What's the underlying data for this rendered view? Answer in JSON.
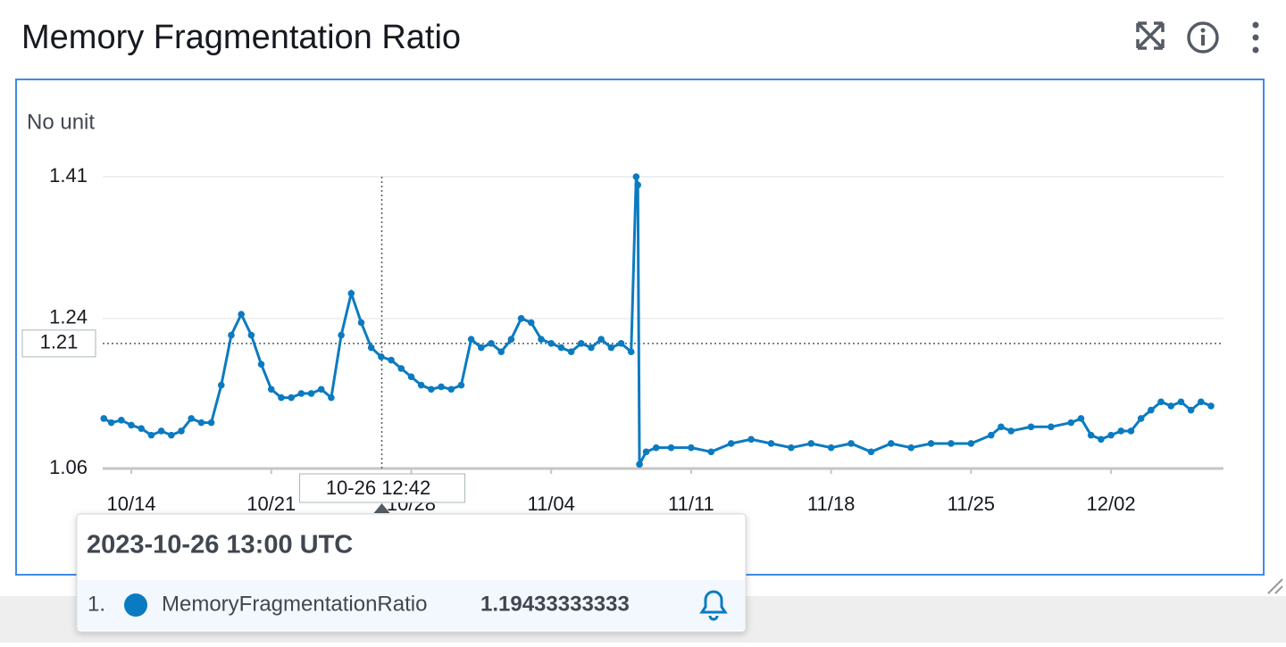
{
  "chart_data": {
    "type": "line",
    "title": "Memory Fragmentation Ratio",
    "y_label": "No unit",
    "x": [
      "10-12 15:00",
      "10-13 00:00",
      "10-13 12:00",
      "10-14 00:00",
      "10-14 12:00",
      "10-15 00:00",
      "10-15 12:00",
      "10-16 00:00",
      "10-16 12:00",
      "10-17 00:00",
      "10-17 12:00",
      "10-18 00:00",
      "10-18 12:00",
      "10-19 00:00",
      "10-19 12:00",
      "10-20 00:00",
      "10-20 12:00",
      "10-21 00:00",
      "10-21 12:00",
      "10-22 00:00",
      "10-22 12:00",
      "10-23 00:00",
      "10-23 12:00",
      "10-24 00:00",
      "10-24 12:00",
      "10-25 00:00",
      "10-25 12:00",
      "10-26 00:00",
      "10-26 12:00",
      "10-27 00:00",
      "10-27 12:00",
      "10-28 00:00",
      "10-28 12:00",
      "10-29 00:00",
      "10-29 12:00",
      "10-30 00:00",
      "10-30 12:00",
      "10-31 00:00",
      "10-31 12:00",
      "11-01 00:00",
      "11-01 12:00",
      "11-02 00:00",
      "11-02 12:00",
      "11-03 00:00",
      "11-03 12:00",
      "11-04 00:00",
      "11-04 12:00",
      "11-05 00:00",
      "11-05 12:00",
      "11-06 00:00",
      "11-06 12:00",
      "11-07 00:00",
      "11-07 12:00",
      "11-08 00:00",
      "11-08 06:00",
      "11-08 08:00",
      "11-08 10:00",
      "11-08 18:00",
      "11-09 06:00",
      "11-10 00:00",
      "11-11 00:00",
      "11-12 00:00",
      "11-13 00:00",
      "11-14 00:00",
      "11-15 00:00",
      "11-16 00:00",
      "11-17 00:00",
      "11-18 00:00",
      "11-19 00:00",
      "11-20 00:00",
      "11-21 00:00",
      "11-22 00:00",
      "11-23 00:00",
      "11-24 00:00",
      "11-25 00:00",
      "11-26 00:00",
      "11-26 12:00",
      "11-27 00:00",
      "11-28 00:00",
      "11-29 00:00",
      "11-30 00:00",
      "11-30 12:00",
      "12-01 00:00",
      "12-01 12:00",
      "12-02 00:00",
      "12-02 12:00",
      "12-03 00:00",
      "12-03 12:00",
      "12-04 00:00",
      "12-04 12:00",
      "12-05 00:00",
      "12-05 12:00",
      "12-06 00:00",
      "12-06 12:00",
      "12-07 00:00"
    ],
    "series": [
      {
        "name": "MemoryFragmentationRatio",
        "color": "#0b7bc1",
        "values": [
          1.12,
          1.115,
          1.118,
          1.112,
          1.108,
          1.1,
          1.105,
          1.1,
          1.105,
          1.12,
          1.115,
          1.115,
          1.16,
          1.22,
          1.245,
          1.22,
          1.185,
          1.155,
          1.145,
          1.145,
          1.15,
          1.15,
          1.155,
          1.145,
          1.22,
          1.27,
          1.235,
          1.205,
          1.194,
          1.19,
          1.18,
          1.17,
          1.16,
          1.155,
          1.158,
          1.155,
          1.16,
          1.215,
          1.205,
          1.21,
          1.2,
          1.215,
          1.24,
          1.235,
          1.215,
          1.21,
          1.205,
          1.2,
          1.21,
          1.205,
          1.215,
          1.205,
          1.21,
          1.2,
          1.41,
          1.4,
          1.065,
          1.08,
          1.085,
          1.085,
          1.085,
          1.08,
          1.09,
          1.095,
          1.09,
          1.085,
          1.09,
          1.085,
          1.09,
          1.08,
          1.09,
          1.085,
          1.09,
          1.09,
          1.09,
          1.1,
          1.11,
          1.105,
          1.11,
          1.11,
          1.115,
          1.12,
          1.1,
          1.095,
          1.1,
          1.105,
          1.105,
          1.12,
          1.13,
          1.14,
          1.135,
          1.14,
          1.13,
          1.14,
          1.135
        ]
      }
    ],
    "xlim": [
      "10-12 13:40",
      "12-07 15:00"
    ],
    "xticks": [
      {
        "value": "10-14 00:00",
        "label": "10/14"
      },
      {
        "value": "10-21 00:00",
        "label": "10/21"
      },
      {
        "value": "10-28 00:00",
        "label": "10/28"
      },
      {
        "value": "11-04 00:00",
        "label": "11/04"
      },
      {
        "value": "11-11 00:00",
        "label": "11/11"
      },
      {
        "value": "11-18 00:00",
        "label": "11/18"
      },
      {
        "value": "11-25 00:00",
        "label": "11/25"
      },
      {
        "value": "12-02 00:00",
        "label": "12/02"
      }
    ],
    "ylim": [
      1.06,
      1.41
    ],
    "yticks": [
      1.06,
      1.24,
      1.41
    ],
    "grid": true,
    "crosshair_x": "10-26 12:42",
    "crosshair_y": 1.21
  },
  "tooltip": {
    "time": "2023-10-26 13:00 UTC",
    "rows": [
      {
        "index": "1.",
        "value": 1.19433333333
      }
    ]
  }
}
